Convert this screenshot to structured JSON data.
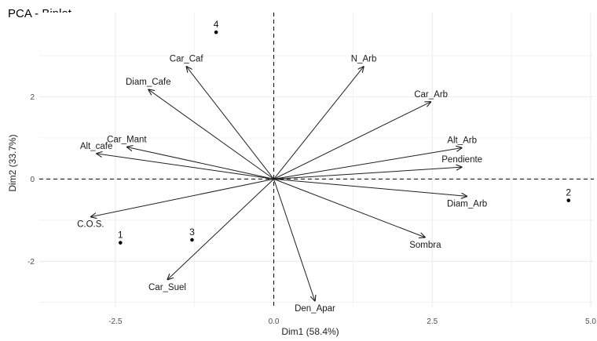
{
  "chart_data": {
    "type": "biplot",
    "title": "PCA - Biplot",
    "xlabel": "Dim1 (58.4%)",
    "ylabel": "Dim2 (33.7%)",
    "xlim": [
      -3.7,
      5.05
    ],
    "ylim": [
      -3.12,
      4.05
    ],
    "x_ticks": [
      -2.5,
      0.0,
      2.5,
      5.0
    ],
    "x_tick_labels": [
      "-2.5",
      "0.0",
      "2.5",
      "5.0"
    ],
    "y_ticks": [
      -2,
      0,
      2
    ],
    "y_tick_labels": [
      "-2",
      "0",
      "2"
    ],
    "grid": true,
    "reference_lines": "dashed at x=0 and y=0",
    "variables": [
      {
        "label": "Car_Caf",
        "x": -1.38,
        "y": 2.74
      },
      {
        "label": "N_Arb",
        "x": 1.42,
        "y": 2.74
      },
      {
        "label": "Diam_Cafe",
        "x": -1.98,
        "y": 2.18
      },
      {
        "label": "Car_Arb",
        "x": 2.48,
        "y": 1.88
      },
      {
        "label": "Car_Mant",
        "x": -2.32,
        "y": 0.78
      },
      {
        "label": "Alt_cafe",
        "x": -2.8,
        "y": 0.62
      },
      {
        "label": "Alt_Arb",
        "x": 2.97,
        "y": 0.76
      },
      {
        "label": "Pendiente",
        "x": 2.97,
        "y": 0.29
      },
      {
        "label": "Diam_Arb",
        "x": 3.05,
        "y": -0.42
      },
      {
        "label": "C.O.S.",
        "x": -2.89,
        "y": -0.92
      },
      {
        "label": "Sombra",
        "x": 2.39,
        "y": -1.42
      },
      {
        "label": "Car_Suel",
        "x": -1.68,
        "y": -2.45
      },
      {
        "label": "Den_Apar",
        "x": 0.65,
        "y": -2.97
      }
    ],
    "individuals": [
      {
        "label": "1",
        "x": -2.42,
        "y": -1.55
      },
      {
        "label": "2",
        "x": 4.65,
        "y": -0.52
      },
      {
        "label": "3",
        "x": -1.29,
        "y": -1.48
      },
      {
        "label": "4",
        "x": -0.91,
        "y": 3.57
      }
    ],
    "colors": {
      "arrow": "#1f1f1f",
      "grid": "#ebebeb",
      "axis_text": "#4d4d4d",
      "point": "#000000"
    }
  }
}
